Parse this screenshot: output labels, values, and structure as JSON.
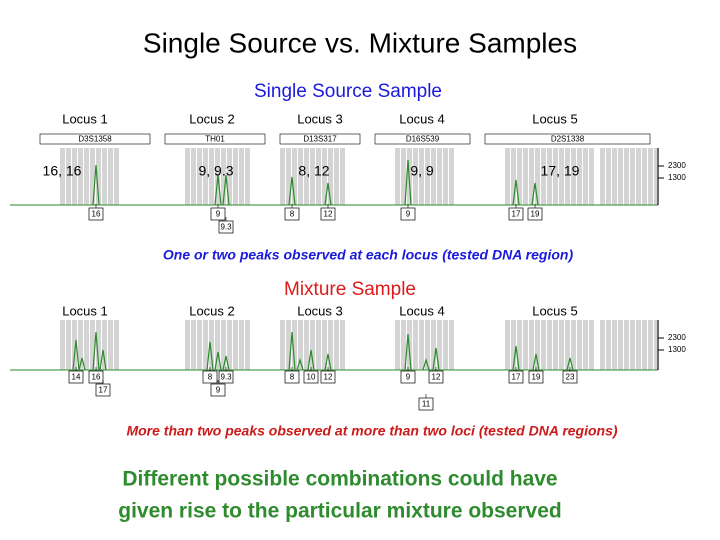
{
  "title": "Single Source vs. Mixture Samples",
  "single": {
    "heading": "Single Source Sample",
    "loci": [
      "Locus 1",
      "Locus 2",
      "Locus 3",
      "Locus 4",
      "Locus 5"
    ],
    "markers": [
      "D3S1358",
      "TH01",
      "D13S317",
      "D16S539",
      "D2S1338"
    ],
    "genotypes": [
      "16, 16",
      "9, 9.3",
      "8, 12",
      "9, 9",
      "17, 19"
    ],
    "allele_calls": [
      "16",
      "9",
      "9.3",
      "8",
      "12",
      "9",
      "17",
      "19"
    ],
    "scale": [
      "2300",
      "1300"
    ],
    "caption": "One or two peaks observed at each locus (tested DNA region)"
  },
  "mixture": {
    "heading": "Mixture Sample",
    "loci": [
      "Locus 1",
      "Locus 2",
      "Locus 3",
      "Locus 4",
      "Locus 5"
    ],
    "allele_calls": [
      "14",
      "16",
      "17",
      "8",
      "9.3",
      "9",
      "8",
      "10",
      "12",
      "9",
      "12",
      "11",
      "17",
      "19",
      "23"
    ],
    "scale": [
      "2300",
      "1300"
    ],
    "caption": "More than two peaks observed at more than two loci (tested DNA regions)"
  },
  "conclusion": [
    "Different possible combinations could have",
    "given rise to the particular mixture observed"
  ]
}
